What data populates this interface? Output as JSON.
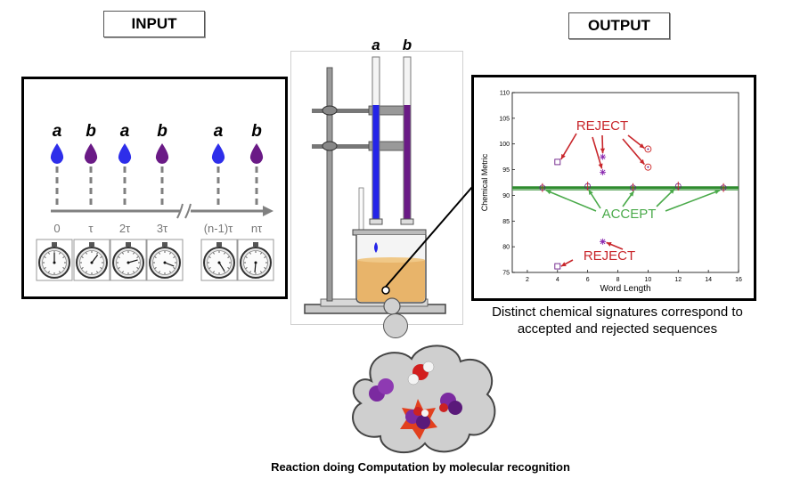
{
  "input_label": "INPUT",
  "output_label": "OUTPUT",
  "input": {
    "sequence": [
      {
        "letter": "a",
        "drop_color": "#2e2eea",
        "time": "0"
      },
      {
        "letter": "b",
        "drop_color": "#6a1a86",
        "time": "τ"
      },
      {
        "letter": "a",
        "drop_color": "#2e2eea",
        "time": "2τ"
      },
      {
        "letter": "b",
        "drop_color": "#6a1a86",
        "time": "3τ"
      },
      {
        "letter": "a",
        "drop_color": "#2e2eea",
        "time": "(n-1)τ"
      },
      {
        "letter": "b",
        "drop_color": "#6a1a86",
        "time": "nτ"
      }
    ]
  },
  "apparatus": {
    "burette_a_label": "a",
    "burette_b_label": "b",
    "color_a": "#2424e8",
    "color_b": "#6a1a86",
    "solution_color": "#e8b46a"
  },
  "chart_data": {
    "type": "scatter",
    "xlabel": "Word Length",
    "ylabel": "Chemical Metric",
    "xlim": [
      1,
      16
    ],
    "ylim": [
      75,
      110
    ],
    "xticks": [
      2,
      4,
      6,
      8,
      10,
      12,
      14,
      16
    ],
    "yticks": [
      75,
      80,
      85,
      90,
      95,
      100,
      105,
      110
    ],
    "accept_level": 91.5,
    "accepted_points": [
      {
        "x": 3,
        "y": 91.5
      },
      {
        "x": 6,
        "y": 91.8
      },
      {
        "x": 9,
        "y": 91.5
      },
      {
        "x": 12,
        "y": 91.8
      },
      {
        "x": 15,
        "y": 91.5
      }
    ],
    "rejected_points": [
      {
        "x": 4,
        "y": 96.5,
        "marker": "square"
      },
      {
        "x": 7,
        "y": 97.5,
        "marker": "star"
      },
      {
        "x": 7,
        "y": 94.5,
        "marker": "star"
      },
      {
        "x": 10,
        "y": 99,
        "marker": "circle"
      },
      {
        "x": 10,
        "y": 95.5,
        "marker": "circle"
      },
      {
        "x": 7,
        "y": 81,
        "marker": "star"
      },
      {
        "x": 4,
        "y": 76.2,
        "marker": "square"
      }
    ],
    "annotations": [
      "REJECT",
      "ACCEPT",
      "REJECT"
    ]
  },
  "output_caption": "Distinct chemical signatures correspond to accepted and rejected sequences",
  "bottom_caption": "Reaction doing Computation by molecular recognition"
}
